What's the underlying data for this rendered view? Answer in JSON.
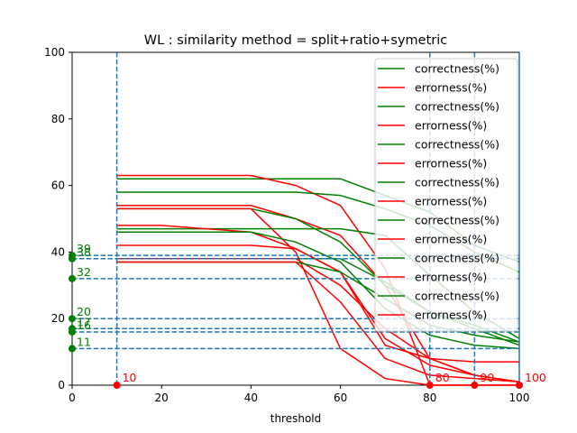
{
  "chart_data": {
    "type": "line",
    "title": "WL : similarity method = split+ratio+symetric",
    "xlabel": "threshold",
    "ylabel": "",
    "xlim": [
      0,
      100
    ],
    "ylim": [
      0,
      100
    ],
    "x_ticks": [
      "0",
      "20",
      "40",
      "60",
      "80",
      "100"
    ],
    "y_ticks": [
      "0",
      "20",
      "40",
      "60",
      "80",
      "100"
    ],
    "grid": false,
    "legend_position": "top-right",
    "colors": {
      "correctness": "#008000",
      "errorness": "#ff0000",
      "guide": "#1f77b4"
    },
    "x": [
      0,
      10,
      20,
      30,
      40,
      50,
      60,
      70,
      80,
      90,
      100
    ],
    "series": [
      {
        "name": "correctness(%)",
        "kind": "correctness",
        "values": [
          null,
          62,
          62,
          62,
          62,
          62,
          62,
          57,
          52,
          42,
          37
        ]
      },
      {
        "name": "errorness(%)",
        "kind": "errorness",
        "values": [
          null,
          63,
          63,
          63,
          63,
          60,
          54,
          35,
          0,
          0,
          0
        ]
      },
      {
        "name": "correctness(%)",
        "kind": "correctness",
        "values": [
          null,
          58,
          58,
          58,
          58,
          58,
          57,
          53,
          48,
          40,
          34
        ]
      },
      {
        "name": "errorness(%)",
        "kind": "errorness",
        "values": [
          null,
          54,
          54,
          54,
          54,
          50,
          45,
          30,
          8,
          3,
          1
        ]
      },
      {
        "name": "correctness(%)",
        "kind": "correctness",
        "values": [
          null,
          53,
          53,
          53,
          53,
          50,
          43,
          30,
          22,
          18,
          13
        ]
      },
      {
        "name": "errorness(%)",
        "kind": "errorness",
        "values": [
          null,
          53,
          53,
          53,
          53,
          40,
          11,
          2,
          0,
          0,
          0
        ]
      },
      {
        "name": "correctness(%)",
        "kind": "correctness",
        "values": [
          null,
          47,
          47,
          47,
          47,
          47,
          47,
          45,
          33,
          22,
          14
        ]
      },
      {
        "name": "errorness(%)",
        "kind": "errorness",
        "values": [
          null,
          48,
          48,
          47,
          46,
          41,
          34,
          12,
          8,
          7,
          7
        ]
      },
      {
        "name": "correctness(%)",
        "kind": "correctness",
        "values": [
          null,
          46,
          46,
          46,
          46,
          43,
          37,
          23,
          15,
          12,
          11
        ]
      },
      {
        "name": "errorness(%)",
        "kind": "errorness",
        "values": [
          null,
          42,
          42,
          42,
          42,
          41,
          34,
          14,
          6,
          3,
          1
        ]
      },
      {
        "name": "correctness(%)",
        "kind": "correctness",
        "values": [
          null,
          38,
          38,
          38,
          38,
          38,
          38,
          31,
          22,
          17,
          12
        ]
      },
      {
        "name": "errorness(%)",
        "kind": "errorness",
        "values": [
          null,
          38,
          38,
          38,
          38,
          38,
          30,
          17,
          8,
          3,
          1
        ]
      },
      {
        "name": "correctness(%)",
        "kind": "correctness",
        "values": [
          null,
          37,
          37,
          37,
          37,
          37,
          34,
          26,
          18,
          15,
          13
        ]
      },
      {
        "name": "errorness(%)",
        "kind": "errorness",
        "values": [
          null,
          37,
          37,
          37,
          37,
          37,
          25,
          8,
          3,
          2,
          1
        ]
      }
    ],
    "guide_lines": {
      "vertical_x": [
        10,
        80,
        90,
        100
      ],
      "horizontal_y": [
        39,
        38,
        32,
        20,
        17,
        16,
        11
      ]
    },
    "threshold_markers": [
      {
        "x": 10,
        "label": "10"
      },
      {
        "x": 80,
        "label": "80"
      },
      {
        "x": 90,
        "label": "90"
      },
      {
        "x": 100,
        "label": "100"
      }
    ],
    "level_markers": [
      {
        "y": 39,
        "label": "39"
      },
      {
        "y": 38,
        "label": "38"
      },
      {
        "y": 32,
        "label": "32"
      },
      {
        "y": 20,
        "label": "20"
      },
      {
        "y": 17,
        "label": "17"
      },
      {
        "y": 16,
        "label": "16"
      },
      {
        "y": 11,
        "label": "11"
      }
    ]
  }
}
